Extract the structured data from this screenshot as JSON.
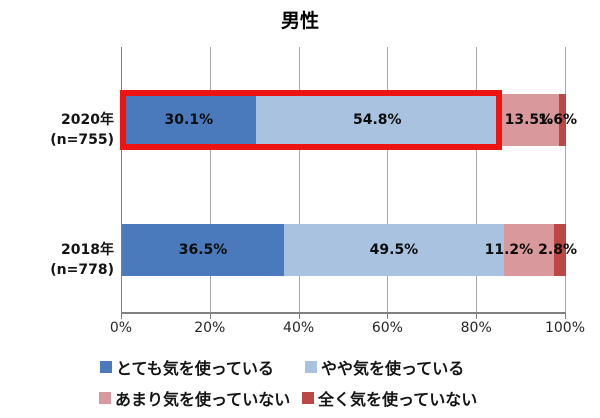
{
  "title": "男性",
  "chart_data": {
    "type": "bar",
    "orientation": "horizontal-stacked",
    "title": "男性",
    "categories": [
      "2020年(n=755)",
      "2018年(n=778)"
    ],
    "series": [
      {
        "name": "とても気を使っている",
        "color": "#4a7abc",
        "values": [
          30.1,
          36.5
        ]
      },
      {
        "name": "やや気を使っている",
        "color": "#a8c2df",
        "values": [
          54.8,
          49.5
        ]
      },
      {
        "name": "あまり気を使っていない",
        "color": "#d9999c",
        "values": [
          13.5,
          11.2
        ]
      },
      {
        "name": "全く気を使っていない",
        "color": "#bc4845",
        "values": [
          1.6,
          2.8
        ]
      }
    ],
    "x_ticks": [
      "0%",
      "20%",
      "40%",
      "60%",
      "80%",
      "100%"
    ],
    "xlim": [
      0,
      100
    ],
    "value_suffix": "%",
    "grid": true,
    "legend_position": "bottom",
    "annotation": {
      "type": "highlight-box",
      "target": "2020年 bar segments 30.1% + 54.8%",
      "color": "#ee1414"
    }
  },
  "colors": {
    "gridline": "#a6a6a6",
    "axis": "#808080",
    "background": "#ffffff",
    "text": "#141414"
  }
}
